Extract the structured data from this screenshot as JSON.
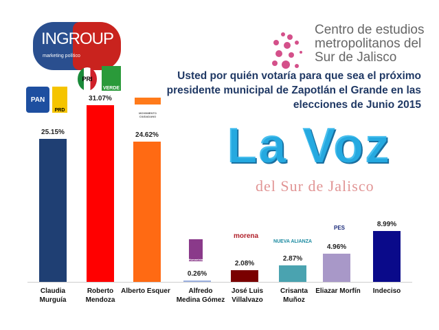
{
  "logos": {
    "ingroup": {
      "name": "INGROUP",
      "tagline": "marketing político"
    },
    "centro": "Centro de estudios\nmetropolitanos del\nSur de Jalisco",
    "watermark": {
      "main": "La Voz",
      "sub": "del Sur de Jalisco"
    },
    "party_logos": [
      "PAN",
      "PRD",
      "PRI",
      "VERDE",
      "MOVIMIENTO CIUDADANO",
      "Humanista",
      "morena",
      "NUEVA ALIANZA",
      "PES"
    ]
  },
  "chart_data": {
    "type": "bar",
    "title": "Usted por quién votaría para que sea el próximo presidente municipal de Zapotlán el Grande en las elecciones de Junio 2015",
    "categories": [
      "Claudia\nMurguía",
      "Roberto\nMendoza",
      "Alberto Esquer",
      "Alfredo\nMedina Gómez",
      "José Luis\nVillalvazo",
      "Crisanta\nMuñoz",
      "Eliazar Morfín",
      "Indeciso"
    ],
    "values": [
      25.15,
      31.07,
      24.62,
      0.26,
      2.08,
      2.87,
      4.96,
      8.99
    ],
    "labels": [
      "25.15%",
      "31.07%",
      "24.62%",
      "0.26%",
      "2.08%",
      "2.87%",
      "4.96%",
      "8.99%"
    ],
    "colors": [
      "#1f3f73",
      "#ff0000",
      "#ff6a13",
      "#9bb0e0",
      "#7a0000",
      "#4aa3b0",
      "#a898c8",
      "#0a0a8a"
    ],
    "ylim": [
      0,
      31.07
    ],
    "xlabel": "",
    "ylabel": "",
    "grid": false
  }
}
